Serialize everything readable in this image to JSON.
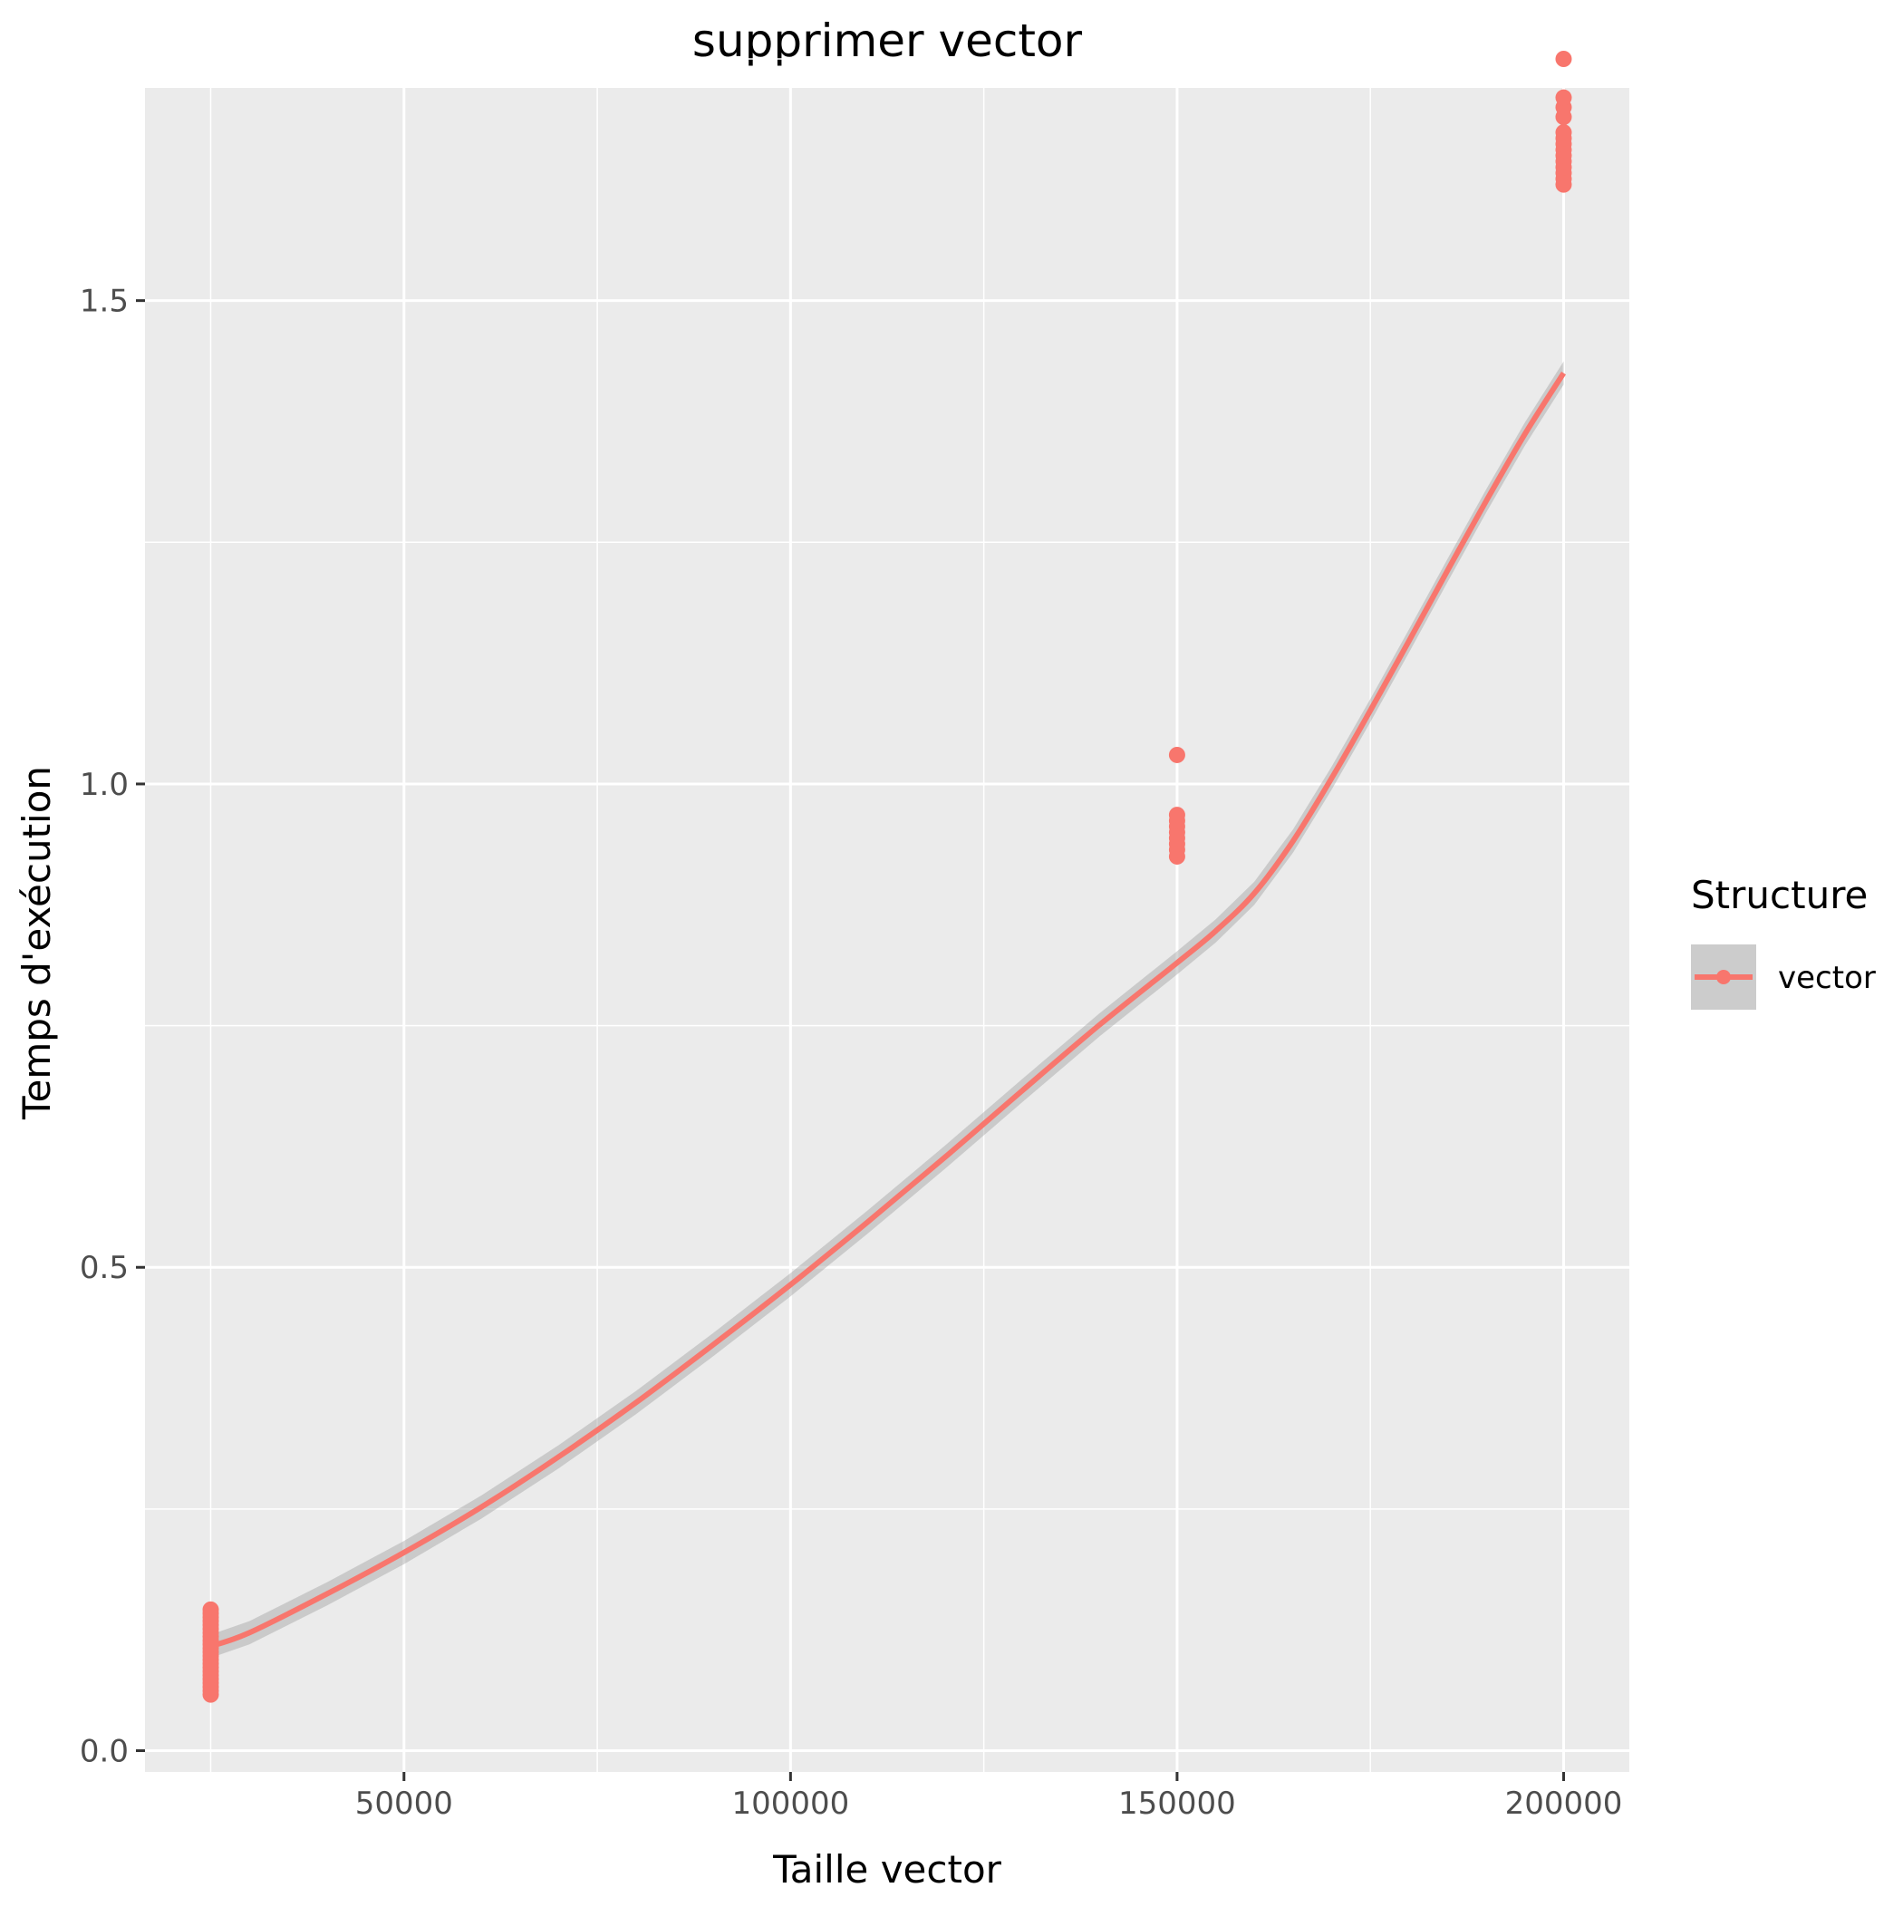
{
  "chart_data": {
    "type": "scatter",
    "title": "supprimer vector",
    "xlabel": "Taille vector",
    "ylabel": "Temps d'exécution",
    "xlim": [
      16500,
      208500
    ],
    "ylim": [
      -0.022,
      1.72
    ],
    "x_ticks": [
      50000,
      100000,
      150000,
      200000
    ],
    "x_tick_labels": [
      "50000",
      "100000",
      "150000",
      "200000"
    ],
    "y_ticks": [
      0.0,
      0.5,
      1.0,
      1.5
    ],
    "y_tick_labels": [
      "0.0",
      "0.5",
      "1.0",
      "1.5"
    ],
    "grid": true,
    "legend": {
      "title": "Structure",
      "placement": "right"
    },
    "series": [
      {
        "name": "vector",
        "color": "#F8766D",
        "points": [
          [
            25000,
            0.058
          ],
          [
            25000,
            0.062
          ],
          [
            25000,
            0.066
          ],
          [
            25000,
            0.07
          ],
          [
            25000,
            0.074
          ],
          [
            25000,
            0.078
          ],
          [
            25000,
            0.082
          ],
          [
            25000,
            0.086
          ],
          [
            25000,
            0.09
          ],
          [
            25000,
            0.094
          ],
          [
            25000,
            0.098
          ],
          [
            25000,
            0.102
          ],
          [
            25000,
            0.106
          ],
          [
            25000,
            0.11
          ],
          [
            25000,
            0.114
          ],
          [
            25000,
            0.118
          ],
          [
            25000,
            0.122
          ],
          [
            25000,
            0.126
          ],
          [
            25000,
            0.13
          ],
          [
            25000,
            0.134
          ],
          [
            25000,
            0.138
          ],
          [
            25000,
            0.142
          ],
          [
            25000,
            0.146
          ],
          [
            150000,
            0.925
          ],
          [
            150000,
            0.932
          ],
          [
            150000,
            0.938
          ],
          [
            150000,
            0.944
          ],
          [
            150000,
            0.95
          ],
          [
            150000,
            0.956
          ],
          [
            150000,
            0.962
          ],
          [
            150000,
            0.968
          ],
          [
            150000,
            1.03
          ],
          [
            200000,
            1.62
          ],
          [
            200000,
            1.626
          ],
          [
            200000,
            1.632
          ],
          [
            200000,
            1.638
          ],
          [
            200000,
            1.644
          ],
          [
            200000,
            1.65
          ],
          [
            200000,
            1.656
          ],
          [
            200000,
            1.662
          ],
          [
            200000,
            1.668
          ],
          [
            200000,
            1.674
          ],
          [
            200000,
            1.69
          ],
          [
            200000,
            1.7
          ],
          [
            200000,
            1.71
          ],
          [
            200000,
            1.75
          ]
        ],
        "smooth": {
          "x": [
            25000,
            30000,
            40000,
            50000,
            60000,
            70000,
            80000,
            90000,
            100000,
            110000,
            120000,
            130000,
            140000,
            150000,
            155000,
            160000,
            165000,
            170000,
            175000,
            180000,
            185000,
            190000,
            195000,
            200000
          ],
          "y": [
            0.108,
            0.122,
            0.162,
            0.205,
            0.252,
            0.304,
            0.36,
            0.42,
            0.482,
            0.547,
            0.614,
            0.683,
            0.751,
            0.815,
            0.848,
            0.887,
            0.941,
            1.006,
            1.076,
            1.148,
            1.221,
            1.293,
            1.362,
            1.425
          ],
          "band": 0.012
        }
      }
    ]
  }
}
